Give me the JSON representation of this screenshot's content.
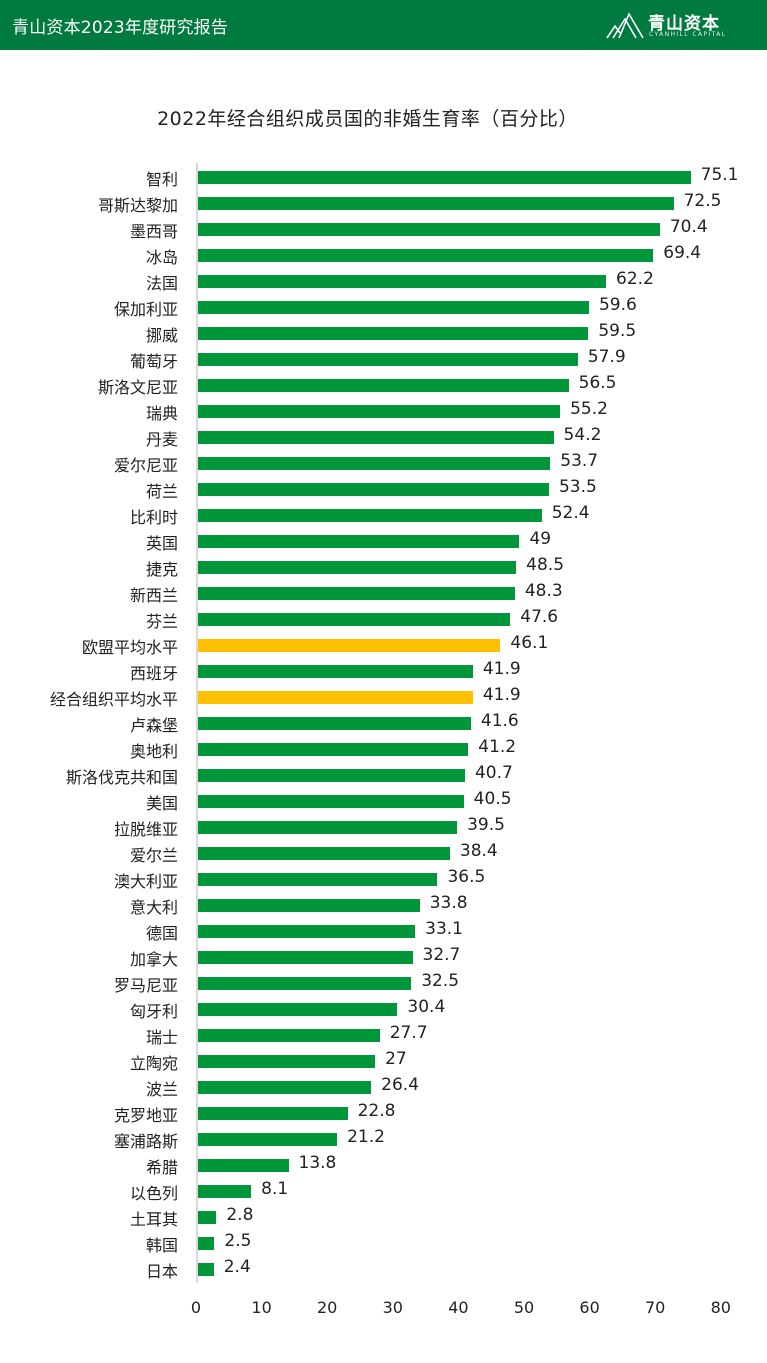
{
  "header": {
    "title": "青山资本2023年度研究报告",
    "background": "#007A3E",
    "logo": {
      "name_cn": "青山资本",
      "name_en": "CYANHILL CAPITAL",
      "icon": "mountain-logo-icon"
    }
  },
  "colors": {
    "country_bar": "#009639",
    "average_bar": "#FFC000"
  },
  "chart_data": {
    "type": "bar",
    "orientation": "horizontal",
    "title": "2022年经合组织成员国的非婚生育率（百分比）",
    "xlabel": "",
    "ylabel": "",
    "xlim": [
      0,
      80
    ],
    "xticks": [
      0,
      10,
      20,
      30,
      40,
      50,
      60,
      70,
      80
    ],
    "grid": false,
    "legend": null,
    "categories": [
      "智利",
      "哥斯达黎加",
      "墨西哥",
      "冰岛",
      "法国",
      "保加利亚",
      "挪威",
      "葡萄牙",
      "斯洛文尼亚",
      "瑞典",
      "丹麦",
      "爱尔尼亚",
      "荷兰",
      "比利时",
      "英国",
      "捷克",
      "新西兰",
      "芬兰",
      "欧盟平均水平",
      "西班牙",
      "经合组织平均水平",
      "卢森堡",
      "奥地利",
      "斯洛伐克共和国",
      "美国",
      "拉脱维亚",
      "爱尔兰",
      "澳大利亚",
      "意大利",
      "德国",
      "加拿大",
      "罗马尼亚",
      "匈牙利",
      "瑞士",
      "立陶宛",
      "波兰",
      "克罗地亚",
      "塞浦路斯",
      "希腊",
      "以色列",
      "土耳其",
      "韩国",
      "日本"
    ],
    "values": [
      75.1,
      72.5,
      70.4,
      69.4,
      62.2,
      59.6,
      59.5,
      57.9,
      56.5,
      55.2,
      54.2,
      53.7,
      53.5,
      52.4,
      49,
      48.5,
      48.3,
      47.6,
      46.1,
      41.9,
      41.9,
      41.6,
      41.2,
      40.7,
      40.5,
      39.5,
      38.4,
      36.5,
      33.8,
      33.1,
      32.7,
      32.5,
      30.4,
      27.7,
      27,
      26.4,
      22.8,
      21.2,
      13.8,
      8.1,
      2.8,
      2.5,
      2.4
    ],
    "value_labels": [
      "75.1",
      "72.5",
      "70.4",
      "69.4",
      "62.2",
      "59.6",
      "59.5",
      "57.9",
      "56.5",
      "55.2",
      "54.2",
      "53.7",
      "53.5",
      "52.4",
      "49",
      "48.5",
      "48.3",
      "47.6",
      "46.1",
      "41.9",
      "41.9",
      "41.6",
      "41.2",
      "40.7",
      "40.5",
      "39.5",
      "38.4",
      "36.5",
      "33.8",
      "33.1",
      "32.7",
      "32.5",
      "30.4",
      "27.7",
      "27",
      "26.4",
      "22.8",
      "21.2",
      "13.8",
      "8.1",
      "2.8",
      "2.5",
      "2.4"
    ],
    "highlighted": [
      "欧盟平均水平",
      "经合组织平均水平"
    ]
  }
}
